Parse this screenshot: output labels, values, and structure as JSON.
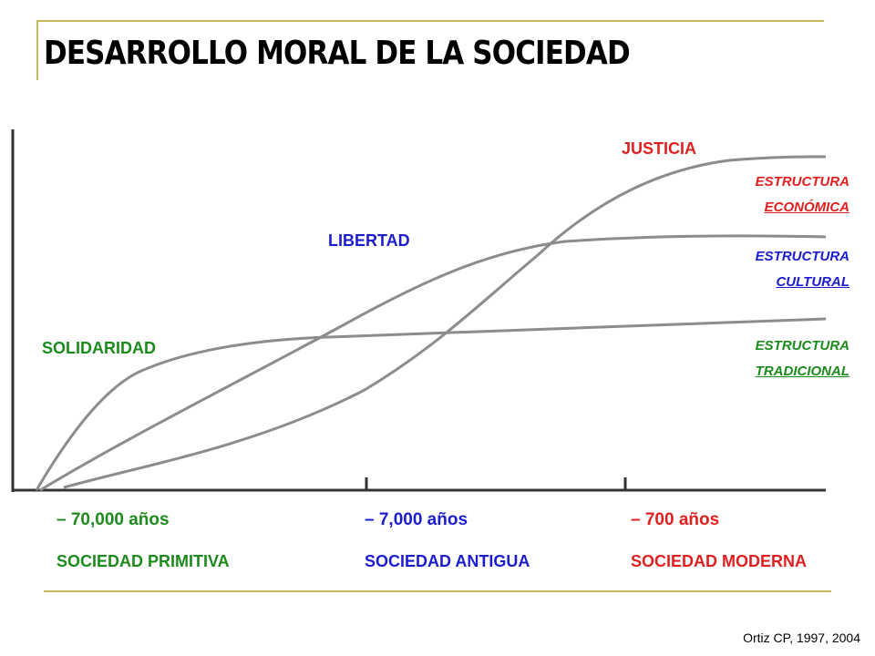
{
  "title": "DESARROLLO MORAL DE LA SOCIEDAD",
  "citation": "Ortiz CP, 1997, 2004",
  "colors": {
    "rule": "#c8b560",
    "axis": "#333333",
    "curve": "#8c8c8c",
    "red": "#e02020",
    "blue": "#1c1ccf",
    "green": "#1d8a1d"
  },
  "curves": [
    {
      "label": "SOLIDARIDAD",
      "structure": [
        "ESTRUCTURA",
        "TRADICIONAL"
      ],
      "color": "green"
    },
    {
      "label": "LIBERTAD",
      "structure": [
        "ESTRUCTURA",
        "CULTURAL"
      ],
      "color": "blue"
    },
    {
      "label": "JUSTICIA",
      "structure": [
        "ESTRUCTURA",
        "ECONÓMICA"
      ],
      "color": "red"
    }
  ],
  "eras": [
    {
      "time": "– 70,000 años",
      "name": "SOCIEDAD PRIMITIVA",
      "color": "green"
    },
    {
      "time": "– 7,000 años",
      "name": "SOCIEDAD ANTIGUA",
      "color": "blue"
    },
    {
      "time": "– 700 años",
      "name": "SOCIEDAD MODERNA",
      "color": "red"
    }
  ]
}
